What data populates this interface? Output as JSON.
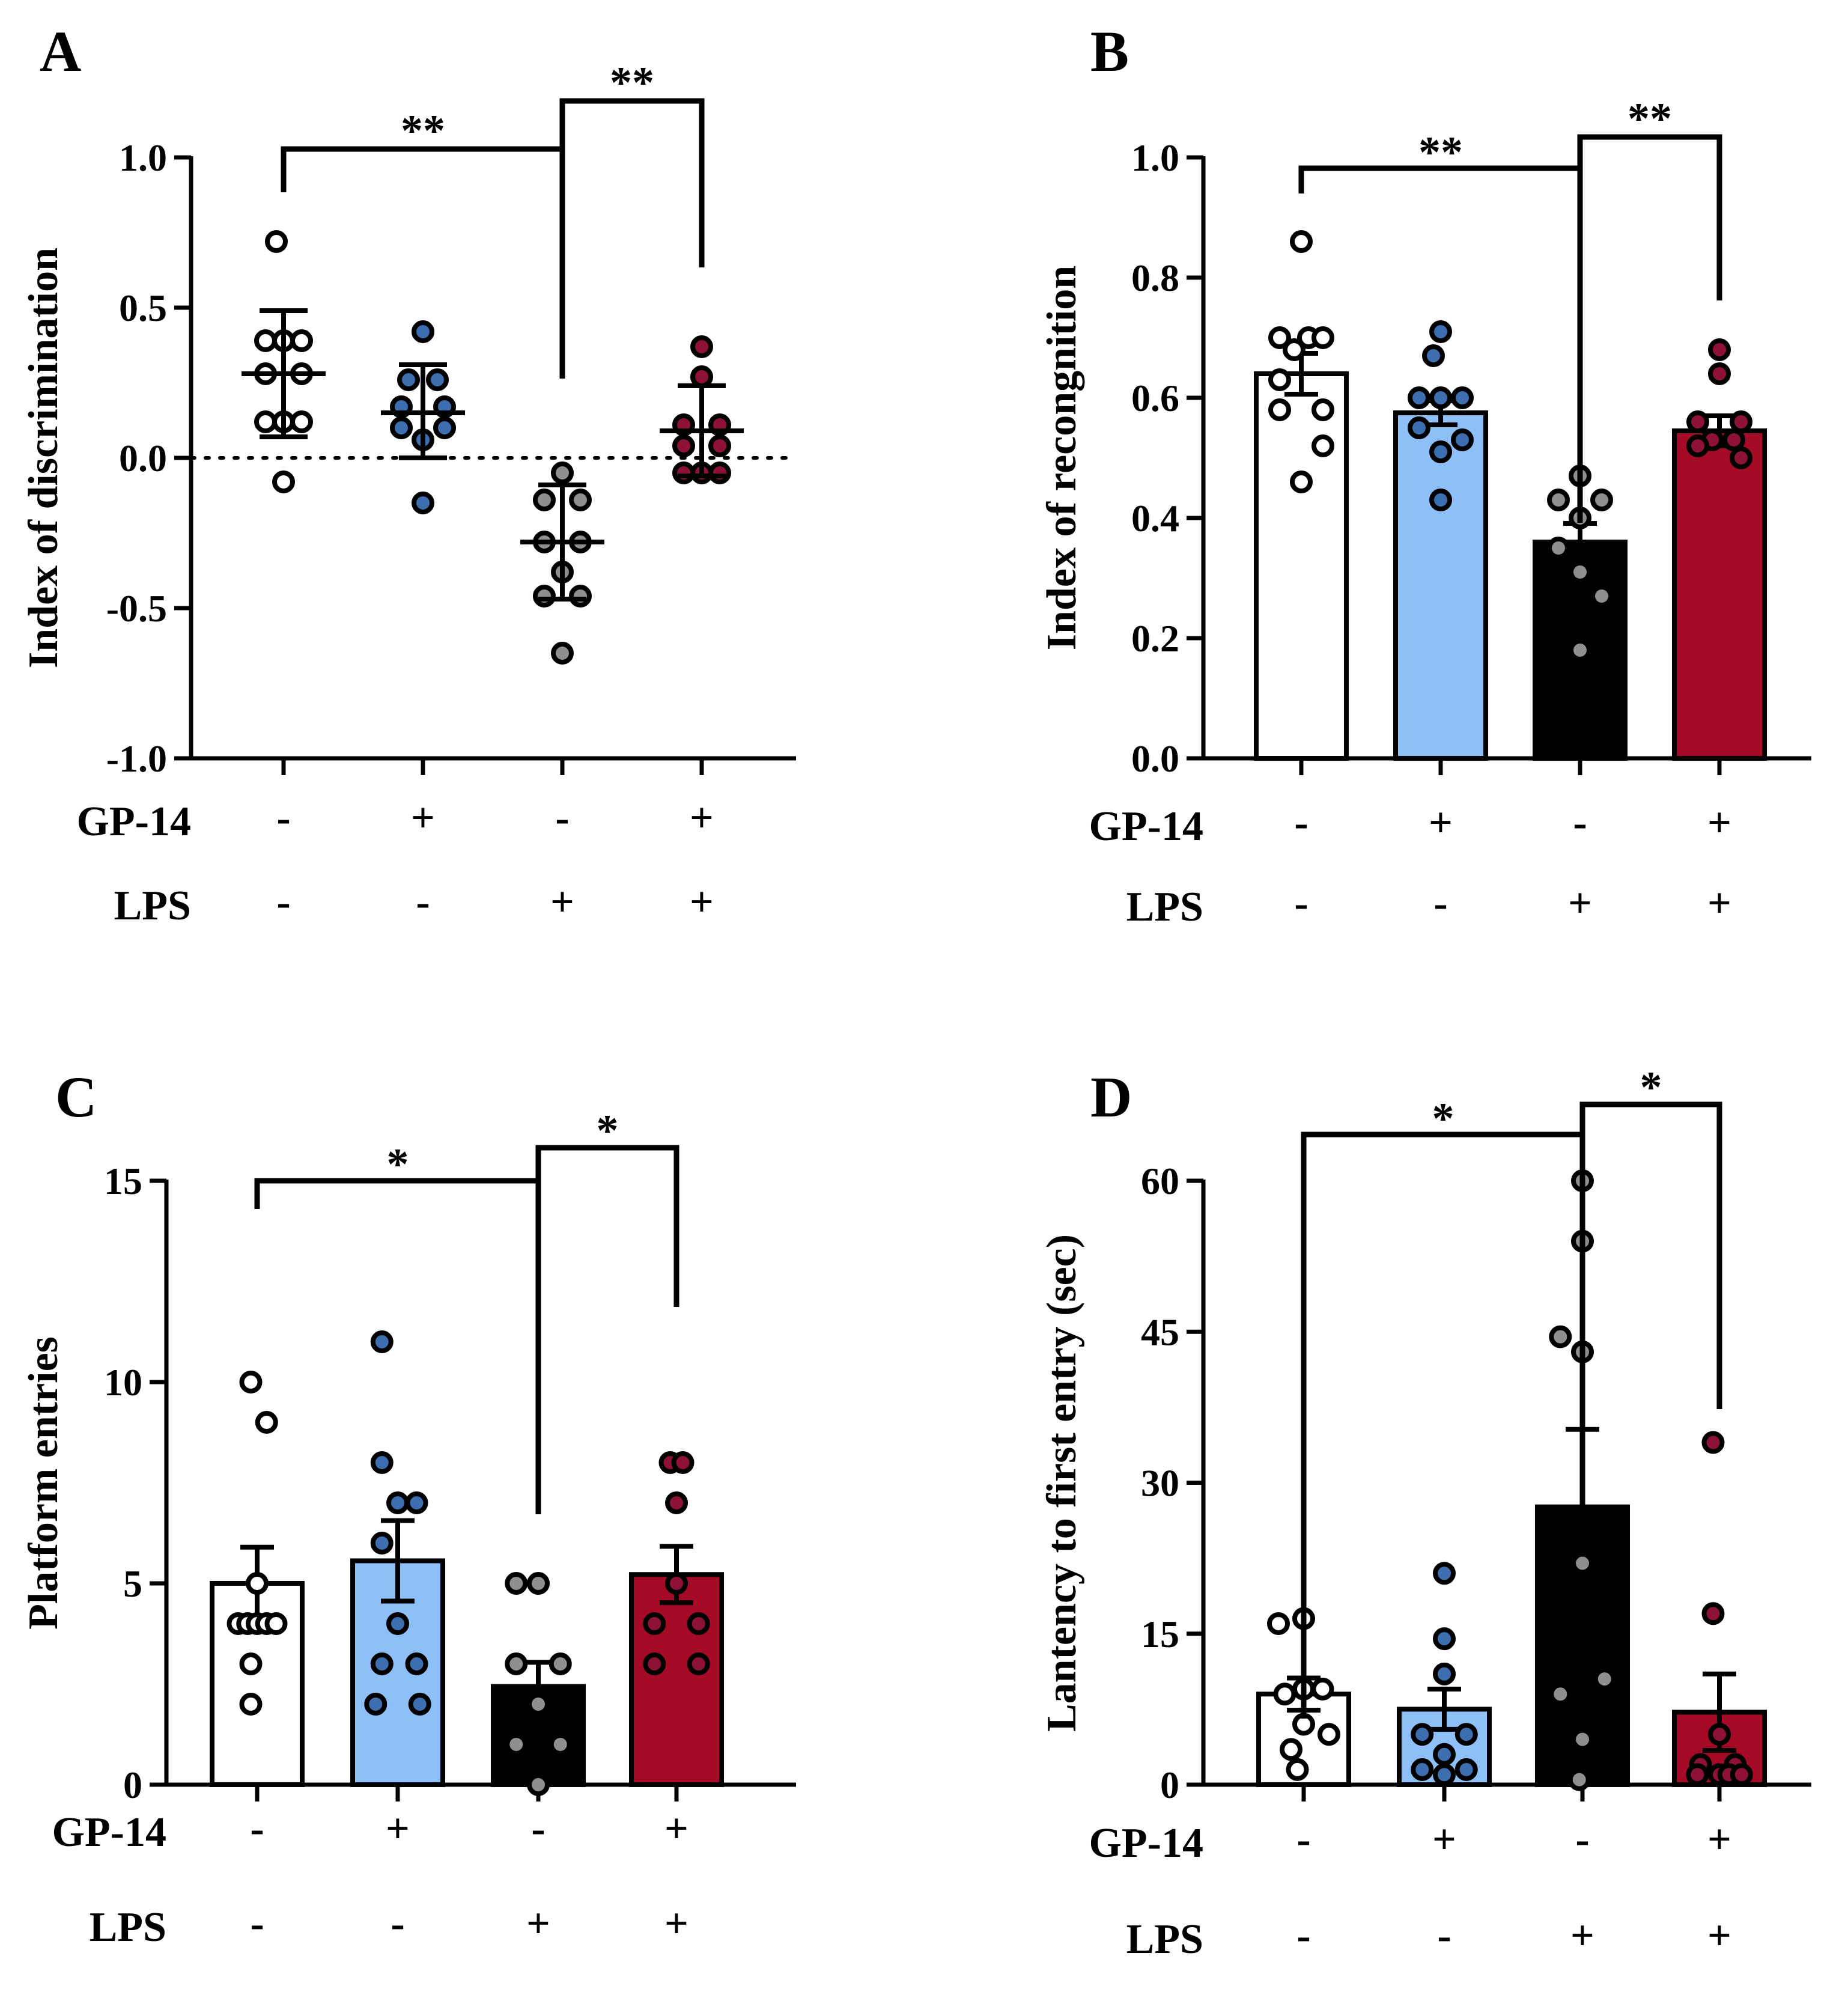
{
  "chart_data": [
    {
      "panel": "A",
      "type": "scatter",
      "ylabel": "Index of discrimination",
      "ylim": [
        -1.0,
        1.0
      ],
      "yticks": [
        -1.0,
        -0.5,
        0.0,
        0.5,
        1.0
      ],
      "ytick_labels": [
        "-1.0",
        "-0.5",
        "0.0",
        "0.5",
        "1.0"
      ],
      "reference_line": 0.0,
      "rows": [
        {
          "label": "GP-14",
          "signs": [
            "-",
            "+",
            "-",
            "+"
          ]
        },
        {
          "label": "LPS",
          "signs": [
            "-",
            "-",
            "+",
            "+"
          ]
        }
      ],
      "groups": [
        {
          "color": "#ffffff",
          "mean": 0.28,
          "err_low": 0.07,
          "err_high": 0.49,
          "points": [
            [
              -0.1,
              0.72
            ],
            [
              -0.25,
              0.39
            ],
            [
              0,
              0.39
            ],
            [
              0.25,
              0.39
            ],
            [
              -0.25,
              0.28
            ],
            [
              0.25,
              0.28
            ],
            [
              -0.25,
              0.12
            ],
            [
              0.25,
              0.12
            ],
            [
              0,
              0.12
            ],
            [
              0,
              -0.08
            ]
          ]
        },
        {
          "color": "#3d6fb0",
          "mean": 0.15,
          "err_low": 0.0,
          "err_high": 0.31,
          "points": [
            [
              0,
              0.42
            ],
            [
              -0.2,
              0.26
            ],
            [
              0.2,
              0.26
            ],
            [
              -0.3,
              0.17
            ],
            [
              0.3,
              0.17
            ],
            [
              -0.3,
              0.1
            ],
            [
              0.3,
              0.1
            ],
            [
              0,
              0.06
            ],
            [
              0,
              -0.15
            ]
          ]
        },
        {
          "color": "#8f8f8f",
          "mean": -0.28,
          "err_low": -0.47,
          "err_high": -0.09,
          "points": [
            [
              0,
              -0.05
            ],
            [
              -0.25,
              -0.14
            ],
            [
              0.25,
              -0.14
            ],
            [
              -0.25,
              -0.28
            ],
            [
              0.25,
              -0.28
            ],
            [
              0,
              -0.38
            ],
            [
              -0.25,
              -0.46
            ],
            [
              0.25,
              -0.46
            ],
            [
              0,
              -0.65
            ]
          ]
        },
        {
          "color": "#8e1235",
          "mean": 0.09,
          "err_low": -0.06,
          "err_high": 0.24,
          "points": [
            [
              0,
              0.37
            ],
            [
              0,
              0.27
            ],
            [
              -0.25,
              0.11
            ],
            [
              0.25,
              0.11
            ],
            [
              -0.25,
              0.04
            ],
            [
              0.25,
              0.04
            ],
            [
              -0.25,
              -0.05
            ],
            [
              0.25,
              -0.05
            ],
            [
              0,
              -0.05
            ]
          ]
        }
      ],
      "comparisons": [
        {
          "from": 0,
          "to": 2,
          "label": "**"
        },
        {
          "from": 2,
          "to": 3,
          "label": "**"
        }
      ]
    },
    {
      "panel": "B",
      "type": "bar",
      "ylabel": "Index of recongnition",
      "ylim": [
        0.0,
        1.0
      ],
      "yticks": [
        0.0,
        0.2,
        0.4,
        0.6,
        0.8,
        1.0
      ],
      "ytick_labels": [
        "0.0",
        "0.2",
        "0.4",
        "0.6",
        "0.8",
        "1.0"
      ],
      "rows": [
        {
          "label": "GP-14",
          "signs": [
            "-",
            "+",
            "-",
            "+"
          ]
        },
        {
          "label": "LPS",
          "signs": [
            "-",
            "-",
            "+",
            "+"
          ]
        }
      ],
      "groups": [
        {
          "color": "#ffffff",
          "point_color": "#ffffff",
          "mean": 0.64,
          "sem": 0.034,
          "points": [
            [
              0,
              0.86
            ],
            [
              -0.3,
              0.7
            ],
            [
              -0.1,
              0.68
            ],
            [
              0.1,
              0.7
            ],
            [
              0.3,
              0.7
            ],
            [
              -0.3,
              0.63
            ],
            [
              0.3,
              0.58
            ],
            [
              -0.3,
              0.58
            ],
            [
              0.3,
              0.52
            ],
            [
              0,
              0.46
            ]
          ]
        },
        {
          "color": "#8ec0f7",
          "point_color": "#3d6fb0",
          "mean": 0.575,
          "sem": 0.02,
          "points": [
            [
              0,
              0.71
            ],
            [
              -0.1,
              0.67
            ],
            [
              -0.3,
              0.6
            ],
            [
              0,
              0.6
            ],
            [
              0.3,
              0.6
            ],
            [
              -0.3,
              0.55
            ],
            [
              0.3,
              0.53
            ],
            [
              0,
              0.51
            ],
            [
              0,
              0.43
            ]
          ]
        },
        {
          "color": "#000000",
          "point_color": "#8f8f8f",
          "mean": 0.36,
          "sem": 0.031,
          "points": [
            [
              0,
              0.47
            ],
            [
              -0.3,
              0.43
            ],
            [
              0.3,
              0.43
            ],
            [
              0,
              0.4
            ],
            [
              -0.3,
              0.35
            ],
            [
              0,
              0.31
            ],
            [
              0.3,
              0.27
            ],
            [
              0,
              0.18
            ]
          ]
        },
        {
          "color": "#a50a26",
          "point_color": "#8e1235",
          "mean": 0.545,
          "sem": 0.025,
          "points": [
            [
              0,
              0.68
            ],
            [
              0,
              0.64
            ],
            [
              -0.3,
              0.56
            ],
            [
              0.3,
              0.56
            ],
            [
              -0.1,
              0.53
            ],
            [
              0.2,
              0.53
            ],
            [
              -0.3,
              0.52
            ],
            [
              0.3,
              0.5
            ]
          ]
        }
      ],
      "comparisons": [
        {
          "from": 0,
          "to": 2,
          "label": "**"
        },
        {
          "from": 2,
          "to": 3,
          "label": "**"
        }
      ]
    },
    {
      "panel": "C",
      "type": "bar",
      "ylabel": "Platform entries",
      "ylim": [
        0,
        15
      ],
      "yticks": [
        0,
        5,
        10,
        15
      ],
      "ytick_labels": [
        "0",
        "5",
        "10",
        "15"
      ],
      "rows": [
        {
          "label": "GP-14",
          "signs": [
            "-",
            "+",
            "-",
            "+"
          ]
        },
        {
          "label": "LPS",
          "signs": [
            "-",
            "-",
            "+",
            "+"
          ]
        }
      ],
      "groups": [
        {
          "color": "#ffffff",
          "point_color": "#ffffff",
          "mean": 5.0,
          "sem": 0.9,
          "points": [
            [
              -0.1,
              10
            ],
            [
              0.15,
              9
            ],
            [
              0,
              5
            ],
            [
              -0.3,
              4
            ],
            [
              -0.15,
              4
            ],
            [
              0,
              4
            ],
            [
              0.15,
              4
            ],
            [
              0.3,
              4
            ],
            [
              -0.1,
              3
            ],
            [
              -0.1,
              2
            ]
          ]
        },
        {
          "color": "#8ec0f7",
          "point_color": "#3d6fb0",
          "mean": 5.56,
          "sem": 1.0,
          "points": [
            [
              -0.25,
              11
            ],
            [
              -0.25,
              8
            ],
            [
              0,
              7
            ],
            [
              0.3,
              7
            ],
            [
              -0.25,
              6
            ],
            [
              0,
              4
            ],
            [
              -0.25,
              3
            ],
            [
              0.3,
              3
            ],
            [
              -0.35,
              2
            ],
            [
              0.35,
              2
            ]
          ]
        },
        {
          "color": "#000000",
          "point_color": "#8f8f8f",
          "mean": 2.44,
          "sem": 0.6,
          "points": [
            [
              -0.35,
              5
            ],
            [
              0,
              5
            ],
            [
              -0.35,
              3
            ],
            [
              0.35,
              3
            ],
            [
              0,
              2
            ],
            [
              -0.35,
              1
            ],
            [
              0.35,
              1
            ],
            [
              0,
              0
            ]
          ]
        },
        {
          "color": "#a50a26",
          "point_color": "#8e1235",
          "mean": 5.22,
          "sem": 0.7,
          "points": [
            [
              -0.1,
              8
            ],
            [
              0.1,
              8
            ],
            [
              0,
              7
            ],
            [
              0,
              5
            ],
            [
              -0.35,
              4
            ],
            [
              0.35,
              4
            ],
            [
              -0.35,
              3
            ],
            [
              0.35,
              3
            ]
          ]
        }
      ],
      "comparisons": [
        {
          "from": 0,
          "to": 2,
          "label": "*"
        },
        {
          "from": 2,
          "to": 3,
          "label": "*"
        }
      ]
    },
    {
      "panel": "D",
      "type": "bar",
      "ylabel": "Lantency to first entry (sec)",
      "ylim": [
        0,
        60
      ],
      "yticks": [
        0,
        15,
        30,
        45,
        60
      ],
      "ytick_labels": [
        "0",
        "15",
        "30",
        "45",
        "60"
      ],
      "rows": [
        {
          "label": "GP-14",
          "signs": [
            "-",
            "+",
            "-",
            "+"
          ]
        },
        {
          "label": "LPS",
          "signs": [
            "-",
            "-",
            "+",
            "+"
          ]
        }
      ],
      "groups": [
        {
          "color": "#ffffff",
          "point_color": "#ffffff",
          "mean": 9.0,
          "sem": 1.6,
          "points": [
            [
              -0.4,
              16
            ],
            [
              0,
              16.5
            ],
            [
              -0.3,
              9
            ],
            [
              0,
              9.5
            ],
            [
              0.3,
              9.5
            ],
            [
              0.4,
              5
            ],
            [
              -0.2,
              3.5
            ],
            [
              -0.1,
              1.5
            ],
            [
              0,
              6
            ]
          ]
        },
        {
          "color": "#8ec0f7",
          "point_color": "#3d6fb0",
          "mean": 7.5,
          "sem": 2.0,
          "points": [
            [
              0,
              21
            ],
            [
              0,
              14.5
            ],
            [
              0,
              11
            ],
            [
              -0.35,
              5
            ],
            [
              0.35,
              5
            ],
            [
              0,
              3
            ],
            [
              -0.35,
              1.5
            ],
            [
              0.35,
              1.5
            ],
            [
              0,
              1
            ]
          ]
        },
        {
          "color": "#000000",
          "point_color": "#8f8f8f",
          "mean": 27.6,
          "sem": 7.7,
          "points": [
            [
              0,
              60
            ],
            [
              0,
              54
            ],
            [
              -0.35,
              44.5
            ],
            [
              0,
              43
            ],
            [
              0,
              22
            ],
            [
              0.35,
              10.5
            ],
            [
              -0.35,
              9
            ],
            [
              0,
              4.5
            ],
            [
              -0.05,
              0.5
            ]
          ]
        },
        {
          "color": "#a50a26",
          "point_color": "#8e1235",
          "mean": 7.2,
          "sem": 3.8,
          "points": [
            [
              -0.1,
              34
            ],
            [
              -0.1,
              17
            ],
            [
              0,
              5
            ],
            [
              -0.3,
              2
            ],
            [
              0.25,
              2
            ],
            [
              -0.35,
              1
            ],
            [
              0,
              1
            ],
            [
              0.15,
              1
            ],
            [
              0.35,
              1
            ]
          ]
        }
      ],
      "comparisons": [
        {
          "from": 0,
          "to": 2,
          "label": "*"
        },
        {
          "from": 2,
          "to": 3,
          "label": "*"
        }
      ]
    }
  ]
}
